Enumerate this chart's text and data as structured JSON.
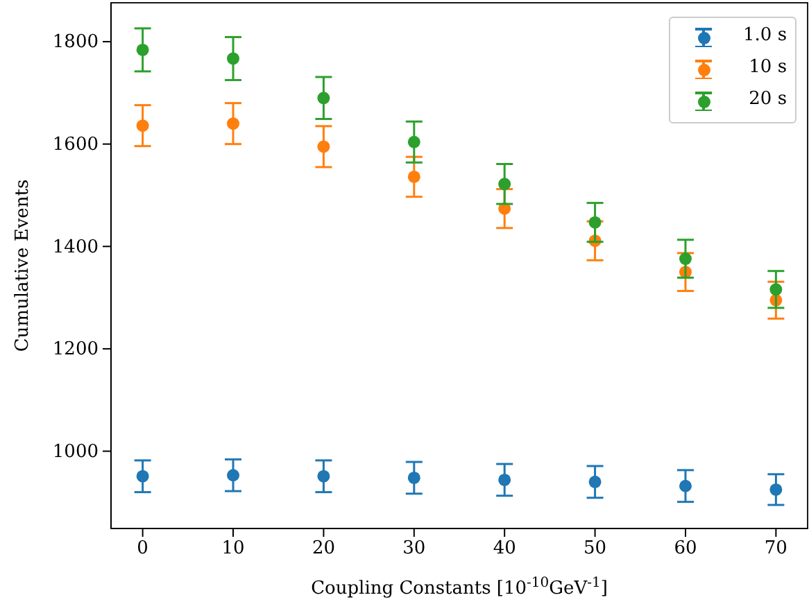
{
  "chart_data": {
    "type": "scatter",
    "xlabel": "Coupling Constants [10$^{-10}$GeV$^{-1}$]",
    "ylabel": "Cumulative Events",
    "x": [
      0,
      10,
      20,
      30,
      40,
      50,
      60,
      70
    ],
    "series": [
      {
        "name": "1.0 s",
        "color": "#1f77b4",
        "values": [
          951,
          953,
          951,
          948,
          944,
          940,
          932,
          925
        ],
        "errors": [
          31,
          31,
          31,
          31,
          31,
          31,
          31,
          30
        ]
      },
      {
        "name": "10 s",
        "color": "#ff7f0e",
        "values": [
          1636,
          1640,
          1595,
          1536,
          1474,
          1411,
          1350,
          1295
        ],
        "errors": [
          40,
          40,
          40,
          39,
          38,
          38,
          37,
          36
        ]
      },
      {
        "name": "20 s",
        "color": "#2ca02c",
        "values": [
          1784,
          1767,
          1690,
          1604,
          1522,
          1447,
          1376,
          1316
        ],
        "errors": [
          42,
          42,
          41,
          40,
          39,
          38,
          37,
          36
        ]
      }
    ],
    "xlim": [
      -3.5,
      73.5
    ],
    "xticks": [
      0,
      10,
      20,
      30,
      40,
      50,
      60,
      70
    ],
    "ylim": [
      849,
      1876
    ],
    "yticks": [
      1000,
      1200,
      1400,
      1600,
      1800
    ],
    "legend": "top right",
    "marker": "circle",
    "grid": false
  }
}
